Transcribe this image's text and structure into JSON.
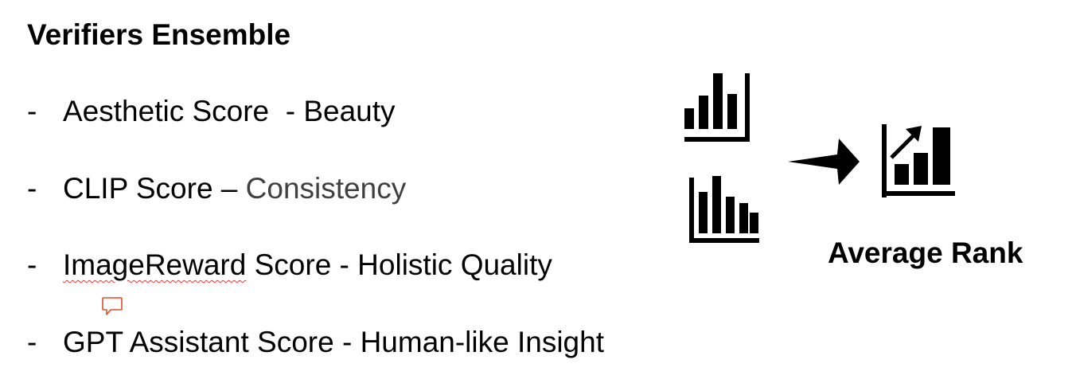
{
  "slide": {
    "title": "Verifiers Ensemble",
    "bullets": [
      {
        "dash": "-",
        "name": "Aesthetic Score",
        "sep": "  - ",
        "desc": "Beauty"
      },
      {
        "dash": "-",
        "name": "CLIP Score",
        "sep": " – ",
        "desc": "Consistency"
      },
      {
        "dash": "-",
        "name": "ImageReward",
        "name_rest": " Score",
        "sep": " - ",
        "desc": "Holistic Quality"
      },
      {
        "dash": "-",
        "name": "GPT Assistant Score",
        "sep": " - ",
        "desc": "Human-like Insight"
      }
    ],
    "result_label": "Average Rank"
  },
  "icons": {
    "chart_1": "bar-chart-icon",
    "chart_2": "bar-chart-icon",
    "arrow": "right-arrow-icon",
    "result": "bar-chart-trend-up-icon",
    "comment": "comment-icon"
  },
  "colors": {
    "text": "#000000",
    "muted_text": "#404040",
    "spellcheck_underline": "#e03a3a",
    "comment_icon": "#d9502c"
  }
}
